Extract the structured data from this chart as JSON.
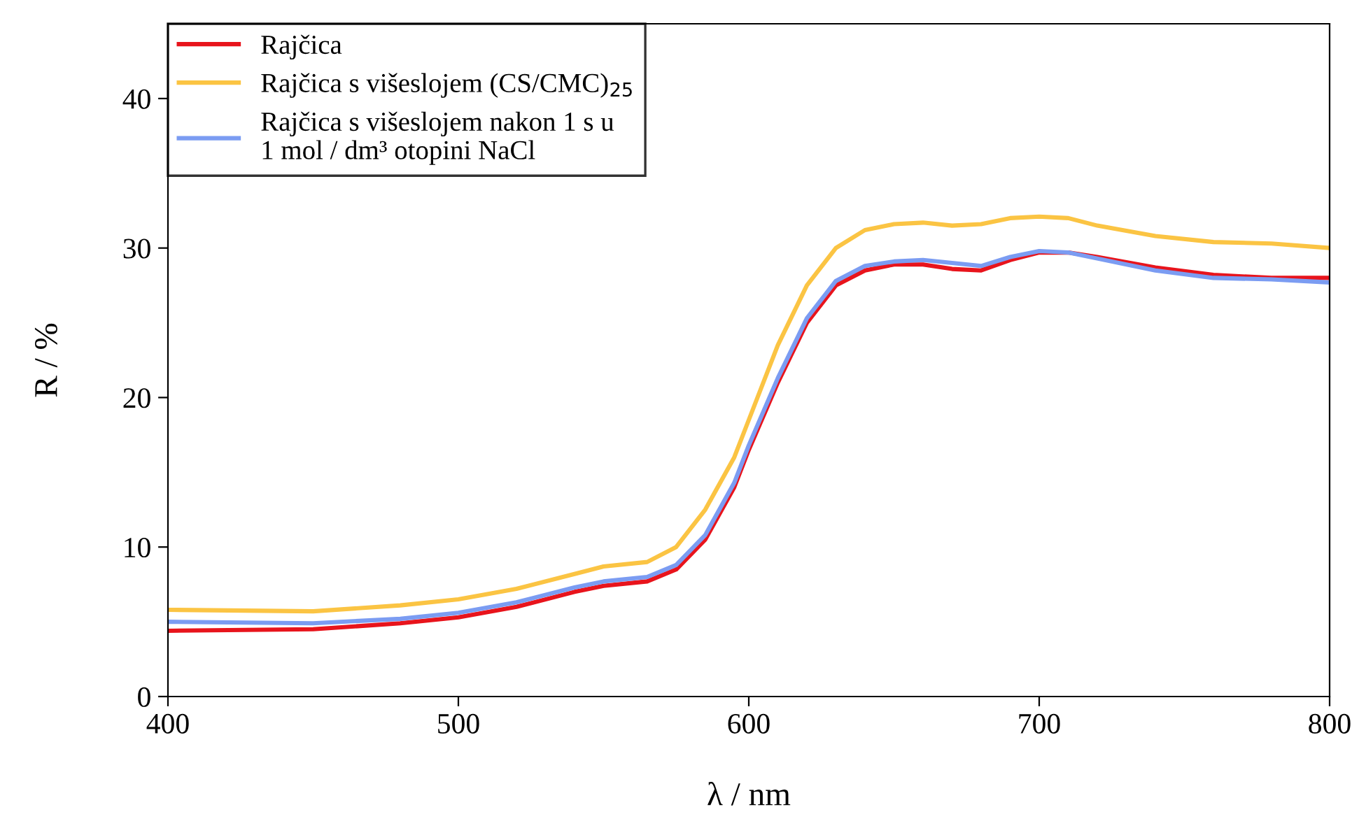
{
  "chart_data": {
    "type": "line",
    "xlabel": "λ / nm",
    "ylabel": "R / %",
    "xlim": [
      400,
      800
    ],
    "ylim": [
      0,
      45
    ],
    "xticks": [
      400,
      500,
      600,
      700,
      800
    ],
    "yticks": [
      0,
      10,
      20,
      30,
      40
    ],
    "grid": false,
    "legend": "top left",
    "marker": "none",
    "line_style": "solid",
    "x": [
      400,
      450,
      480,
      500,
      520,
      540,
      550,
      565,
      575,
      585,
      595,
      600,
      610,
      620,
      630,
      640,
      650,
      660,
      670,
      680,
      690,
      700,
      710,
      720,
      740,
      760,
      780,
      800
    ],
    "series": [
      {
        "name": "Rajčica",
        "color": "#e8141c",
        "values": [
          4.4,
          4.5,
          4.9,
          5.3,
          6.0,
          7.0,
          7.4,
          7.7,
          8.5,
          10.5,
          14,
          16.5,
          21,
          25,
          27.5,
          28.5,
          28.9,
          28.9,
          28.6,
          28.5,
          29.2,
          29.7,
          29.7,
          29.4,
          28.7,
          28.2,
          28.0,
          28.0
        ]
      },
      {
        "name": "Rajčica s višeslojem (CS/CMC)$_{25}$",
        "color": "#fbc443",
        "values": [
          5.8,
          5.7,
          6.1,
          6.5,
          7.2,
          8.2,
          8.7,
          9.0,
          10.0,
          12.5,
          16,
          18.5,
          23.5,
          27.5,
          30,
          31.2,
          31.6,
          31.7,
          31.5,
          31.6,
          32.0,
          32.1,
          32.0,
          31.5,
          30.8,
          30.4,
          30.3,
          30.0
        ]
      },
      {
        "name": "Rajčica s višeslojem nakon 1 s u\n1 mol / dm³ otopini NaCl",
        "color": "#7b9cf2",
        "values": [
          5.0,
          4.9,
          5.2,
          5.6,
          6.3,
          7.3,
          7.7,
          8.0,
          8.8,
          10.8,
          14.3,
          16.8,
          21.3,
          25.3,
          27.8,
          28.8,
          29.1,
          29.2,
          29.0,
          28.8,
          29.4,
          29.8,
          29.7,
          29.3,
          28.5,
          28.0,
          27.9,
          27.7
        ]
      }
    ]
  }
}
